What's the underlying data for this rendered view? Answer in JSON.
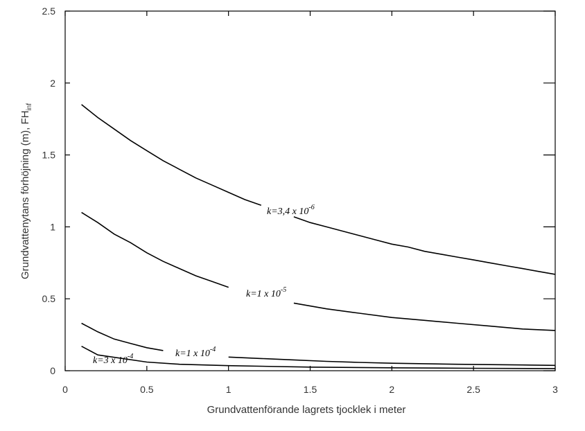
{
  "chart_data": {
    "type": "line",
    "xlabel": "Grundvattenförande lagrets tjocklek i meter",
    "ylabel": "Grundvattenytans förhöjning (m), FH",
    "ylabel_subscript": "inf",
    "xlim": [
      0,
      3
    ],
    "ylim": [
      0,
      2.5
    ],
    "xticks": [
      "0",
      "0.5",
      "1",
      "1.5",
      "2",
      "2.5",
      "3"
    ],
    "yticks": [
      "0",
      "0.5",
      "1",
      "1.5",
      "2",
      "2.5"
    ],
    "grid": false,
    "legend": "none (inline curve labels)",
    "series": [
      {
        "label_base": "k=3,4 x 10",
        "label_exp": "-6",
        "color": "#000000",
        "x": [
          0.1,
          0.2,
          0.3,
          0.4,
          0.5,
          0.6,
          0.7,
          0.8,
          0.9,
          1.0,
          1.1,
          1.2,
          1.3,
          1.4,
          1.5,
          1.6,
          1.7,
          1.8,
          1.9,
          2.0,
          2.1,
          2.2,
          2.3,
          2.4,
          2.5,
          2.6,
          2.7,
          2.8,
          2.9,
          3.0
        ],
        "y": [
          1.85,
          1.76,
          1.68,
          1.6,
          1.53,
          1.46,
          1.4,
          1.34,
          1.29,
          1.24,
          1.19,
          1.15,
          1.11,
          1.07,
          1.03,
          1.0,
          0.97,
          0.94,
          0.91,
          0.88,
          0.86,
          0.83,
          0.81,
          0.79,
          0.77,
          0.75,
          0.73,
          0.71,
          0.69,
          0.67
        ]
      },
      {
        "label_base": "k=1 x 10",
        "label_exp": "-5",
        "color": "#000000",
        "x": [
          0.1,
          0.2,
          0.3,
          0.4,
          0.5,
          0.6,
          0.7,
          0.8,
          0.9,
          1.0,
          1.2,
          1.4,
          1.6,
          1.8,
          2.0,
          2.2,
          2.4,
          2.6,
          2.8,
          3.0
        ],
        "y": [
          1.1,
          1.03,
          0.95,
          0.89,
          0.82,
          0.76,
          0.71,
          0.66,
          0.62,
          0.58,
          0.52,
          0.47,
          0.43,
          0.4,
          0.37,
          0.35,
          0.33,
          0.31,
          0.29,
          0.28
        ]
      },
      {
        "label_base": "k=1 x 10",
        "label_exp": "-4",
        "color": "#000000",
        "x": [
          0.1,
          0.2,
          0.3,
          0.4,
          0.5,
          0.6,
          0.7,
          0.8,
          1.0,
          1.2,
          1.4,
          1.6,
          1.8,
          2.0,
          2.4,
          2.8,
          3.0
        ],
        "y": [
          0.33,
          0.27,
          0.22,
          0.19,
          0.16,
          0.14,
          0.13,
          0.11,
          0.095,
          0.085,
          0.075,
          0.065,
          0.058,
          0.052,
          0.045,
          0.04,
          0.037
        ]
      },
      {
        "label_base": "k=3 x 10",
        "label_exp": "-4",
        "color": "#000000",
        "x": [
          0.1,
          0.2,
          0.5,
          0.7,
          1.0,
          1.5,
          2.0,
          2.5,
          3.0
        ],
        "y": [
          0.17,
          0.11,
          0.06,
          0.045,
          0.035,
          0.025,
          0.02,
          0.017,
          0.015
        ]
      }
    ]
  }
}
